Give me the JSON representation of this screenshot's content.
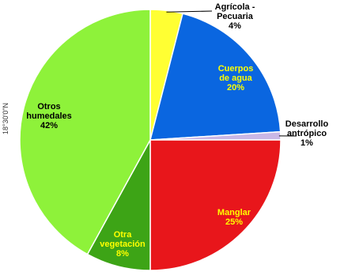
{
  "side_label": "18°30'0\"N",
  "chart_data": {
    "type": "pie",
    "title": "",
    "slices": [
      {
        "name_lines": [
          "Agrícola -",
          "Pecuaria"
        ],
        "pct_label": "4%",
        "value": 4,
        "color": "#ffff33",
        "text_color": "#000000"
      },
      {
        "name_lines": [
          "Cuerpos",
          "de agua"
        ],
        "pct_label": "20%",
        "value": 20,
        "color": "#0a66e0",
        "text_color": "#ffff00"
      },
      {
        "name_lines": [
          "Desarrollo",
          "antrópico"
        ],
        "pct_label": "1%",
        "value": 1,
        "color": "#c9b7e6",
        "text_color": "#000000"
      },
      {
        "name_lines": [
          "Manglar"
        ],
        "pct_label": "25%",
        "value": 25,
        "color": "#e8161b",
        "text_color": "#ffff00"
      },
      {
        "name_lines": [
          "Otra",
          "vegetación"
        ],
        "pct_label": "8%",
        "value": 8,
        "color": "#3da416",
        "text_color": "#ffff00"
      },
      {
        "name_lines": [
          "Otros",
          "humedales"
        ],
        "pct_label": "42%",
        "value": 42,
        "color": "#8ef23a",
        "text_color": "#000000"
      }
    ]
  }
}
